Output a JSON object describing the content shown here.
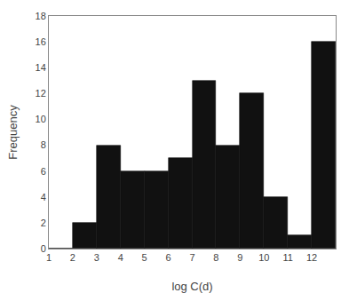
{
  "chart_data": {
    "type": "histogram",
    "xlabel": "log C(d)",
    "ylabel": "Frequency",
    "bins": [
      1,
      2,
      3,
      4,
      5,
      6,
      7,
      8,
      9,
      10,
      11,
      12,
      13
    ],
    "values": [
      0,
      2,
      8,
      6,
      6,
      7,
      13,
      8,
      12,
      4,
      1,
      16
    ],
    "color": "#111111",
    "xlim": [
      1,
      13
    ],
    "ylim": [
      0,
      18
    ],
    "xticks": [
      1,
      2,
      3,
      4,
      5,
      6,
      7,
      8,
      9,
      10,
      11,
      12
    ],
    "yticks": [
      0,
      2,
      4,
      6,
      8,
      10,
      12,
      14,
      16,
      18
    ],
    "grid": false
  }
}
